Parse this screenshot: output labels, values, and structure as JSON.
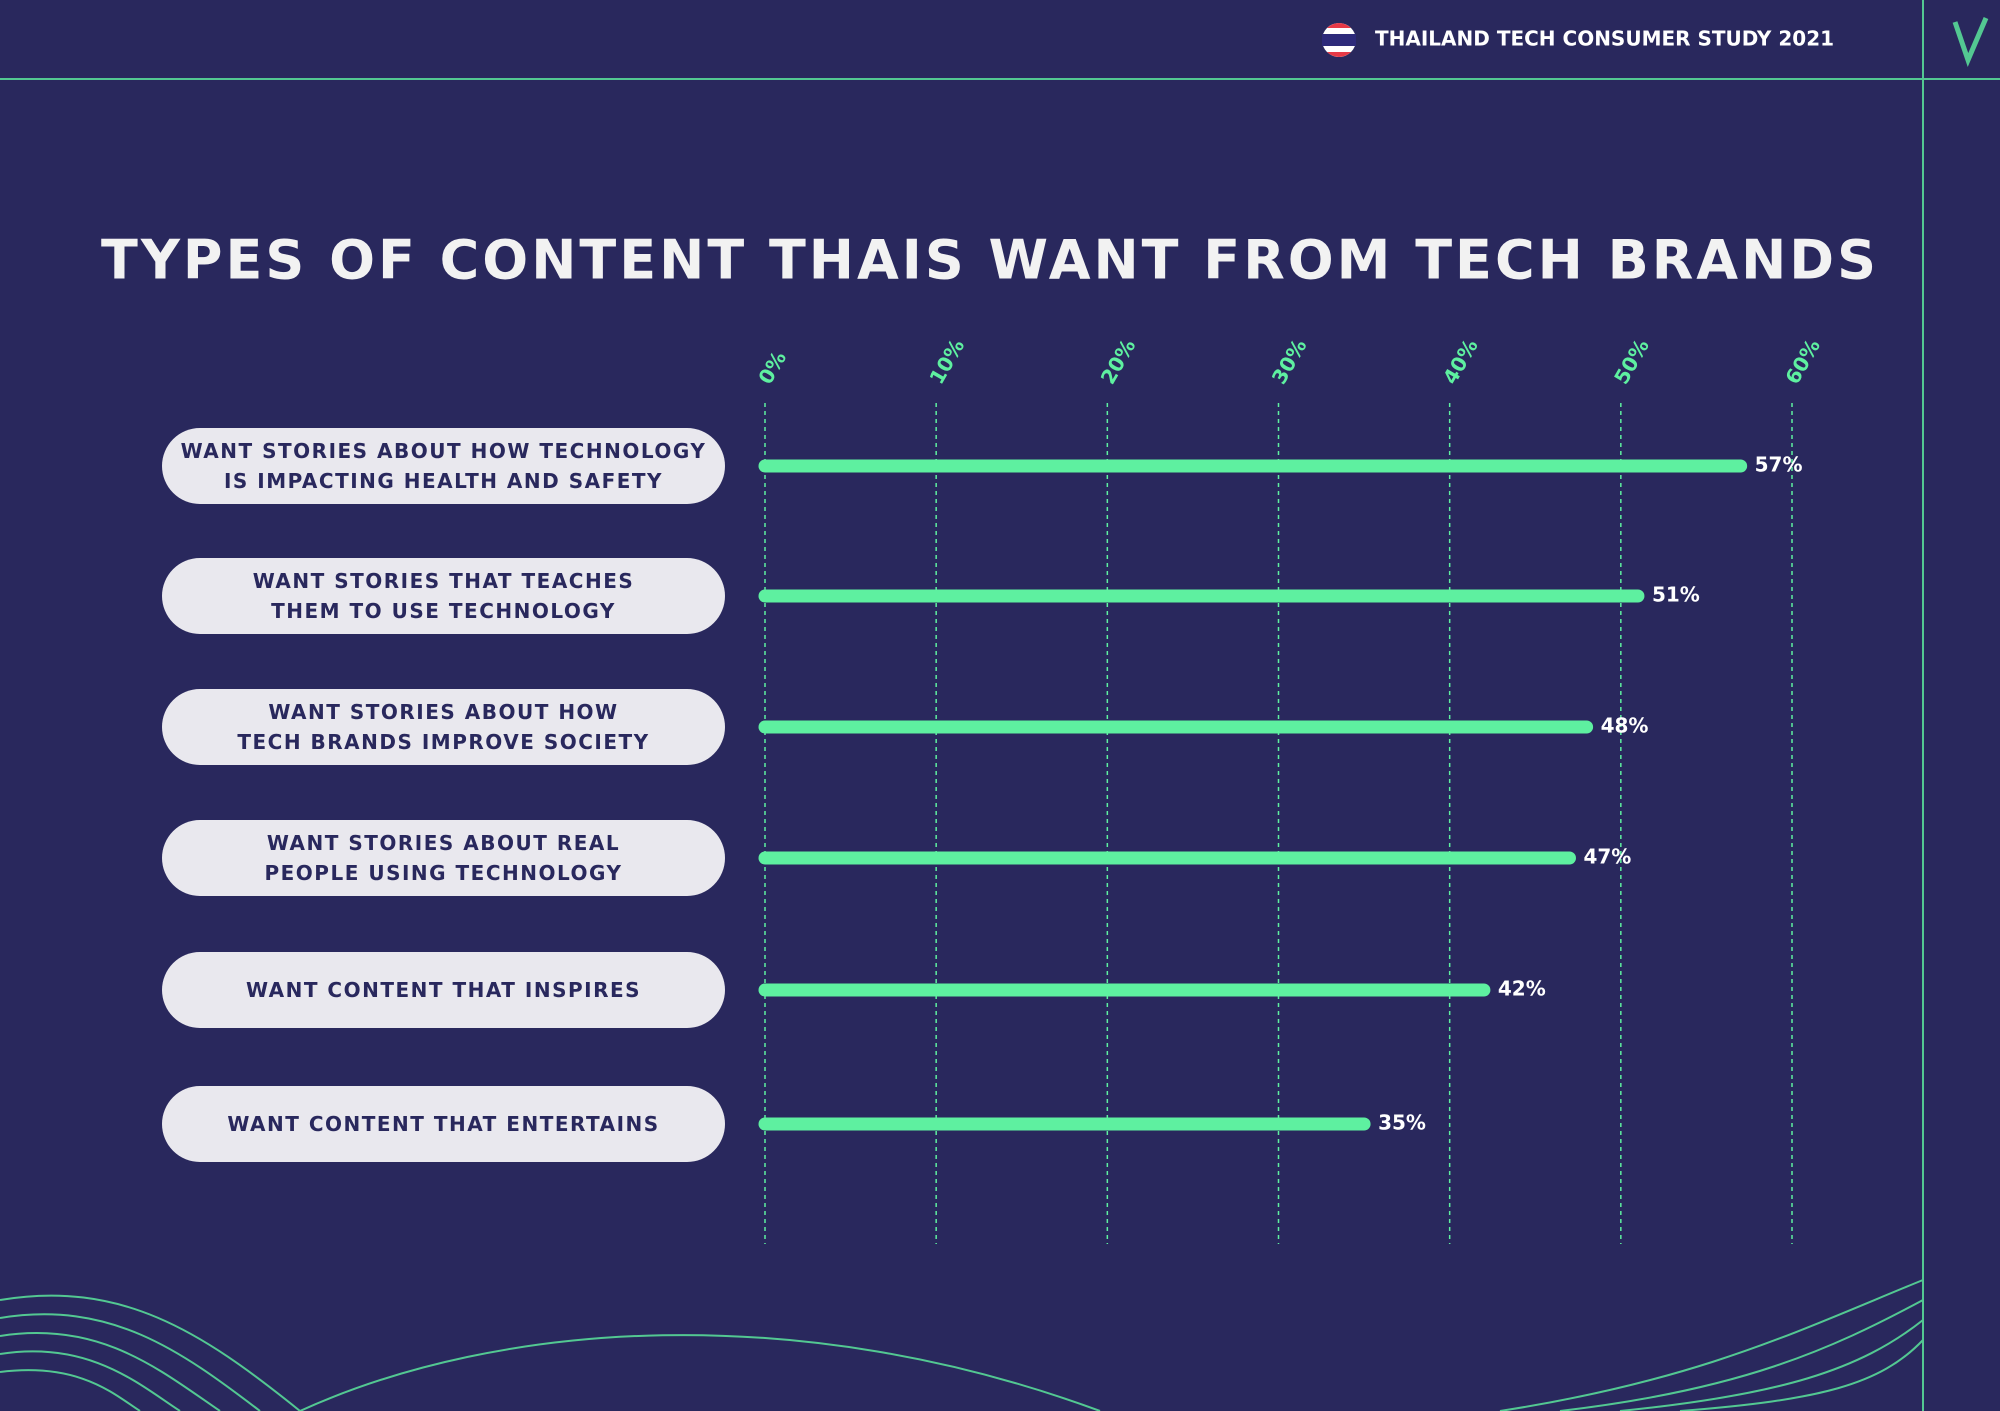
{
  "header": {
    "title": "THAILAND TECH CONSUMER STUDY 2021"
  },
  "chart_data": {
    "type": "bar",
    "orientation": "horizontal",
    "title": "TYPES OF CONTENT THAIS WANT FROM TECH BRANDS",
    "categories": [
      "WANT STORIES ABOUT HOW TECHNOLOGY\nIS IMPACTING HEALTH AND SAFETY",
      "WANT STORIES THAT TEACHES\nTHEM TO USE TECHNOLOGY",
      "WANT STORIES ABOUT HOW\nTECH BRANDS IMPROVE SOCIETY",
      "WANT STORIES ABOUT REAL\nPEOPLE USING TECHNOLOGY",
      "WANT CONTENT THAT INSPIRES",
      "WANT CONTENT THAT ENTERTAINS"
    ],
    "values": [
      57,
      51,
      48,
      47,
      42,
      35
    ],
    "value_labels": [
      "57%",
      "51%",
      "48%",
      "47%",
      "42%",
      "35%"
    ],
    "color": "#5ef0a0",
    "xlim": [
      0,
      60
    ],
    "xticks": [
      {
        "value": 0,
        "label": "0%"
      },
      {
        "value": 10,
        "label": "10%"
      },
      {
        "value": 20,
        "label": "20%"
      },
      {
        "value": 30,
        "label": "30%"
      },
      {
        "value": 40,
        "label": "40%"
      },
      {
        "value": 50,
        "label": "50%"
      },
      {
        "value": 60,
        "label": "60%"
      }
    ],
    "grid": true
  }
}
